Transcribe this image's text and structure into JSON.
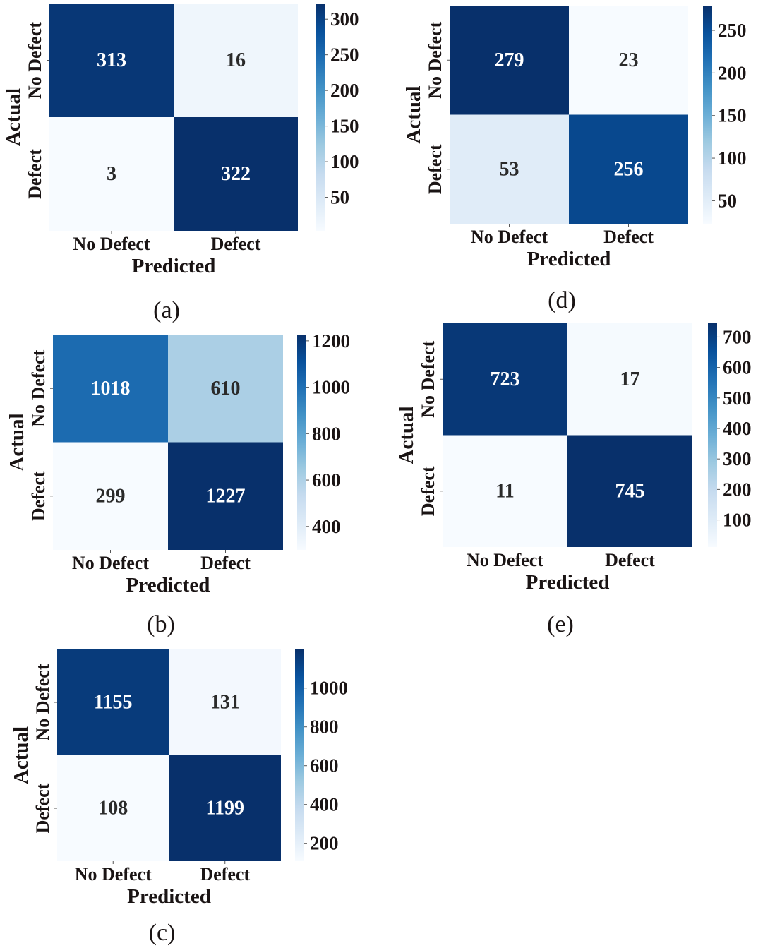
{
  "chart_data": [
    {
      "type": "heatmap",
      "panel": "a",
      "caption": "(a)",
      "xlabel": "Predicted",
      "ylabel": "Actual",
      "x_categories": [
        "No Defect",
        "Defect"
      ],
      "y_categories": [
        "No Defect",
        "Defect"
      ],
      "matrix": [
        [
          313,
          16
        ],
        [
          3,
          322
        ]
      ],
      "colormap": "Blues",
      "colorbar": {
        "range": [
          3,
          322
        ],
        "ticks": [
          50,
          100,
          150,
          200,
          250,
          300
        ]
      }
    },
    {
      "type": "heatmap",
      "panel": "b",
      "caption": "(b)",
      "xlabel": "Predicted",
      "ylabel": "Actual",
      "x_categories": [
        "No Defect",
        "Defect"
      ],
      "y_categories": [
        "No Defect",
        "Defect"
      ],
      "matrix": [
        [
          1018,
          610
        ],
        [
          299,
          1227
        ]
      ],
      "colormap": "Blues",
      "colorbar": {
        "range": [
          299,
          1227
        ],
        "ticks": [
          400,
          600,
          800,
          1000,
          1200
        ]
      }
    },
    {
      "type": "heatmap",
      "panel": "c",
      "caption": "(c)",
      "xlabel": "Predicted",
      "ylabel": "Actual",
      "x_categories": [
        "No Defect",
        "Defect"
      ],
      "y_categories": [
        "No Defect",
        "Defect"
      ],
      "matrix": [
        [
          1155,
          131
        ],
        [
          108,
          1199
        ]
      ],
      "colormap": "Blues",
      "colorbar": {
        "range": [
          108,
          1199
        ],
        "ticks": [
          200,
          400,
          600,
          800,
          1000
        ]
      }
    },
    {
      "type": "heatmap",
      "panel": "d",
      "caption": "(d)",
      "xlabel": "Predicted",
      "ylabel": "Actual",
      "x_categories": [
        "No Defect",
        "Defect"
      ],
      "y_categories": [
        "No Defect",
        "Defect"
      ],
      "matrix": [
        [
          279,
          23
        ],
        [
          53,
          256
        ]
      ],
      "colormap": "Blues",
      "colorbar": {
        "range": [
          23,
          279
        ],
        "ticks": [
          50,
          100,
          150,
          200,
          250
        ]
      }
    },
    {
      "type": "heatmap",
      "panel": "e",
      "caption": "(e)",
      "xlabel": "Predicted",
      "ylabel": "Actual",
      "x_categories": [
        "No Defect",
        "Defect"
      ],
      "y_categories": [
        "No Defect",
        "Defect"
      ],
      "matrix": [
        [
          723,
          17
        ],
        [
          11,
          745
        ]
      ],
      "colormap": "Blues",
      "colorbar": {
        "range": [
          11,
          745
        ],
        "ticks": [
          100,
          200,
          300,
          400,
          500,
          600,
          700
        ]
      }
    }
  ]
}
